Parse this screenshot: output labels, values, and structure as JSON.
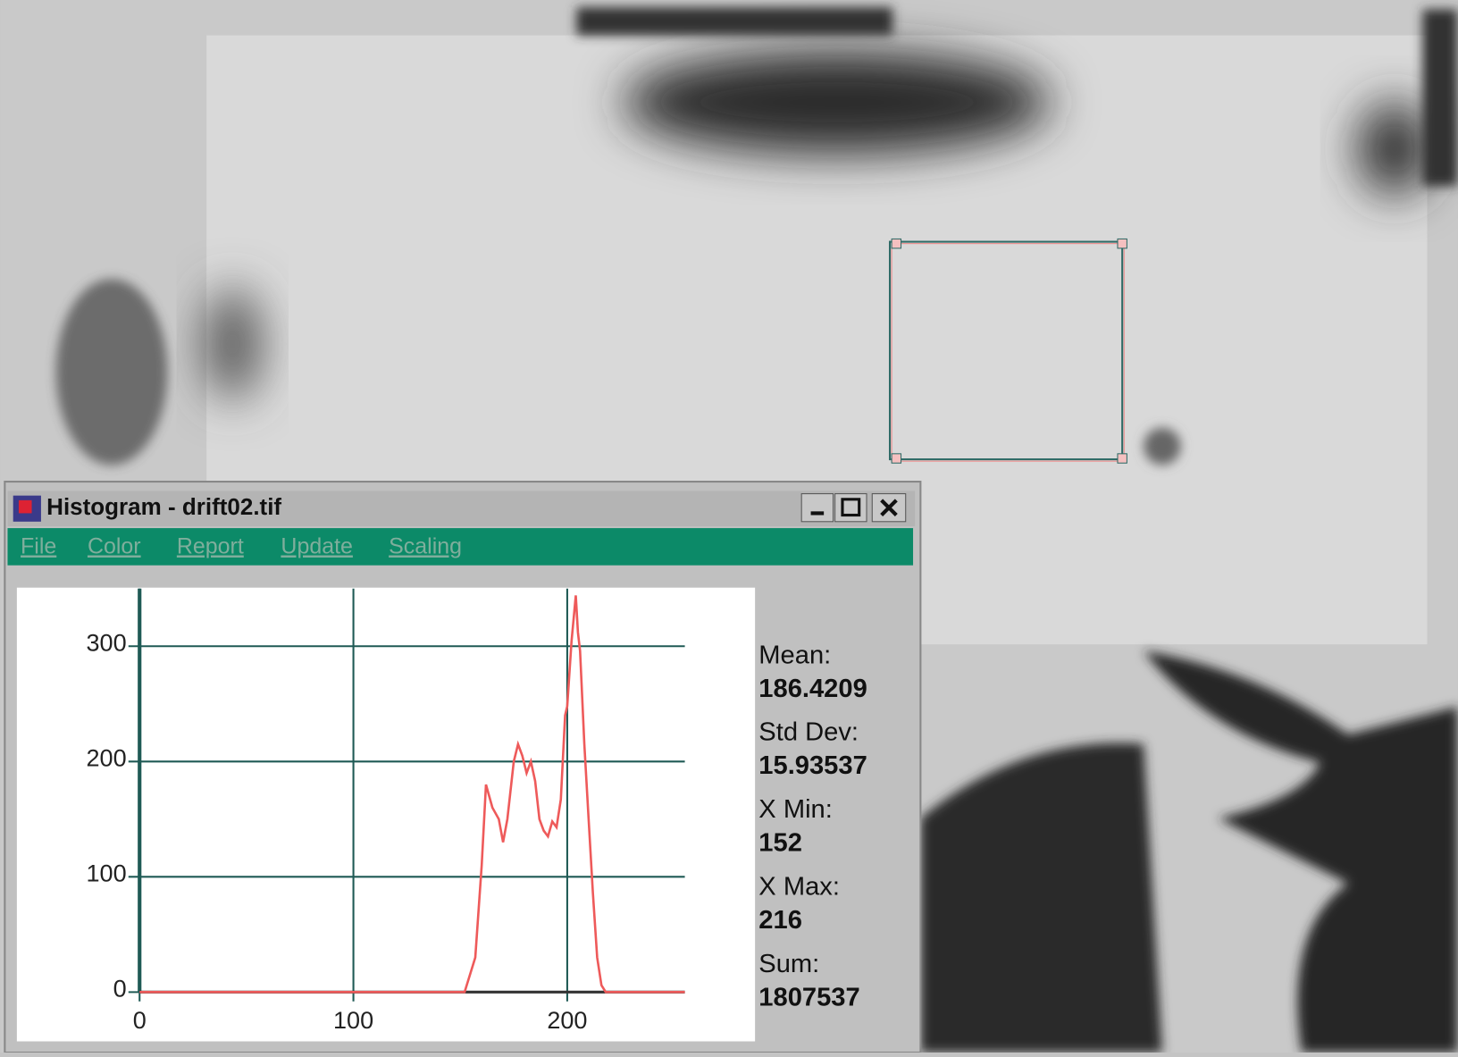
{
  "window": {
    "title": "Histogram - drift02.tif",
    "menu": [
      "File",
      "Color",
      "Report",
      "Update",
      "Scaling"
    ],
    "stats": [
      {
        "label": "Mean:",
        "value": 186.4209
      },
      {
        "label": "Std Dev:",
        "value": 15.93537
      },
      {
        "label": "X Min:",
        "value": 152
      },
      {
        "label": "X Max:",
        "value": 216
      },
      {
        "label": "Sum:",
        "value": 1807537
      }
    ]
  },
  "chart_data": {
    "type": "line",
    "color": "#ee5a5a",
    "grid": true,
    "x": [
      0,
      150,
      152,
      157,
      160,
      162,
      165,
      168,
      170,
      172,
      175,
      177,
      179,
      181,
      183,
      185,
      187,
      189,
      191,
      193,
      195,
      197,
      199,
      200,
      202,
      204,
      205,
      206,
      208,
      210,
      212,
      214,
      216,
      218,
      255
    ],
    "values": [
      0,
      0,
      0,
      30,
      110,
      180,
      160,
      150,
      130,
      150,
      200,
      215,
      205,
      190,
      200,
      183,
      150,
      140,
      135,
      148,
      143,
      167,
      240,
      248,
      304,
      344,
      312,
      296,
      215,
      150,
      86,
      30,
      6,
      0,
      0
    ],
    "xlim": [
      0,
      255
    ],
    "ylim": [
      0,
      350
    ],
    "xticks": [
      0,
      100,
      200
    ],
    "yticks": [
      0,
      100,
      200,
      300
    ]
  }
}
